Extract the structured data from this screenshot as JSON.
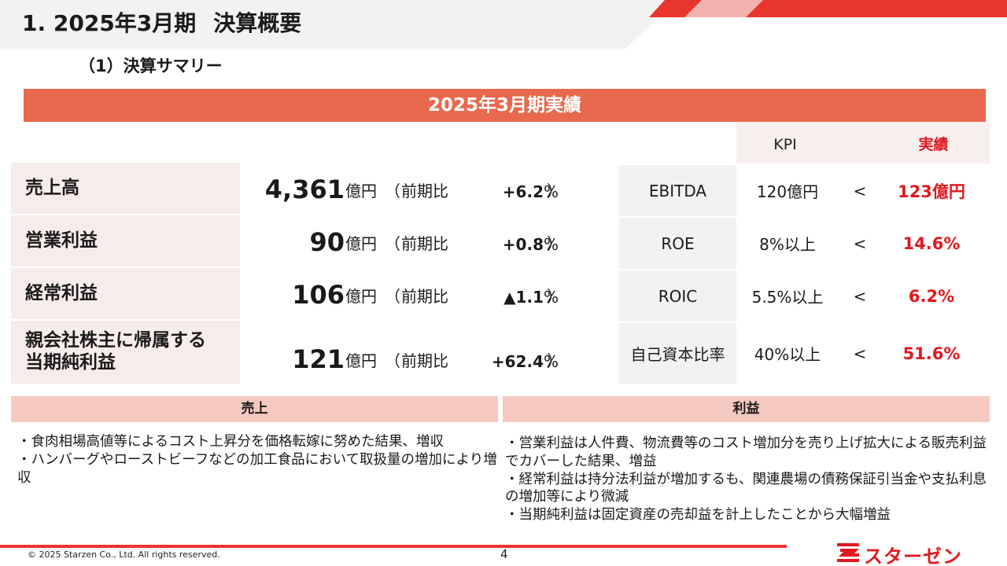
{
  "header": {
    "title_no": "1. 2025年3月期",
    "title_rest": "決算概要",
    "subtitle": "（1）決算サマリー"
  },
  "banner": "2025年3月期実績",
  "kpi_headers": {
    "kpi": "KPI",
    "actual": "実績"
  },
  "metrics": [
    {
      "label": "売上高",
      "value": "4,361",
      "unit": "億円",
      "compare": "前期比",
      "change": "+6.2",
      "pct": "%"
    },
    {
      "label": "営業利益",
      "value": "90",
      "unit": "億円",
      "compare": "前期比",
      "change": "+0.8",
      "pct": "%"
    },
    {
      "label": "経常利益",
      "value": "106",
      "unit": "億円",
      "compare": "前期比",
      "change": "▲1.1",
      "pct": "%"
    },
    {
      "label": "親会社株主に帰属する当期純利益",
      "label_line1": "親会社株主に帰属する",
      "label_line2": "当期純利益",
      "value": "121",
      "unit": "億円",
      "compare": "前期比",
      "change": "+62.4",
      "pct": "%"
    }
  ],
  "paren": {
    "open": "（",
    "close": "）"
  },
  "kpis": [
    {
      "name": "EBITDA",
      "target": "120億円",
      "op": "<",
      "actual": "123億円"
    },
    {
      "name": "ROE",
      "target": "8%以上",
      "op": "<",
      "actual": "14.6%"
    },
    {
      "name": "ROIC",
      "target": "5.5%以上",
      "op": "<",
      "actual": "6.2%"
    },
    {
      "name": "自己資本比率",
      "target": "40%以上",
      "op": "<",
      "actual": "51.6%"
    }
  ],
  "sales_section": {
    "heading": "売上",
    "notes": [
      "・食肉相場高値等によるコスト上昇分を価格転嫁に努めた結果、増収",
      "・ハンバーグやローストビーフなどの加工食品において取扱量の増加により増収"
    ]
  },
  "profit_section": {
    "heading": "利益",
    "notes": [
      "・営業利益は人件費、物流費等のコスト増加分を売り上げ拡大による販売利益でカバーした結果、増益",
      "・経常利益は持分法利益が増加するも、関連農場の債務保証引当金や支払利息の増加等により微減",
      "・当期純利益は固定資産の売却益を計上したことから大幅増益"
    ]
  },
  "footer": {
    "copyright": "© 2025 Starzen Co., Ltd. All rights reserved.",
    "page": "4",
    "logo": "スターゼン"
  },
  "colors": {
    "brand_red": "#e0191f",
    "banner": "#e8694d",
    "label_bg": "#f6ecea",
    "section_bg": "#f6c9c0"
  }
}
